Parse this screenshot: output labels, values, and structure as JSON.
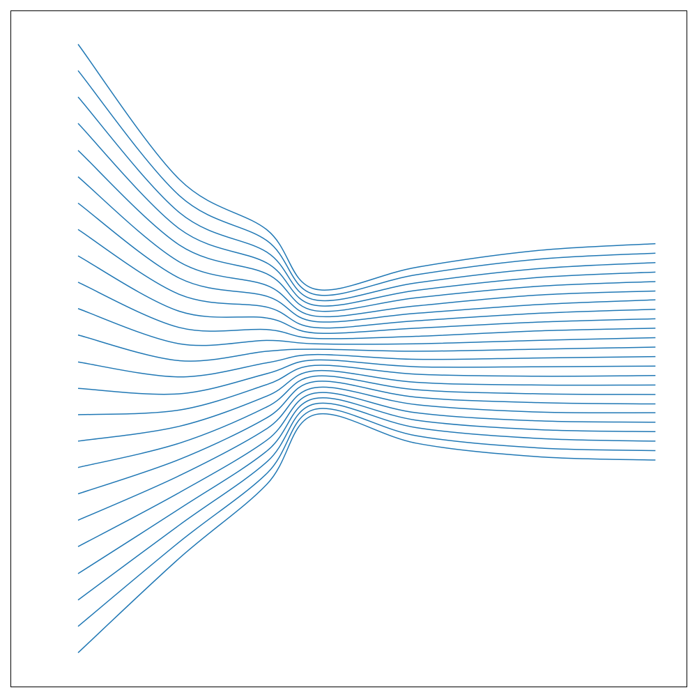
{
  "chart_data": {
    "type": "line",
    "color": "#1f77b4",
    "xlim": [
      0,
      100
    ],
    "ylim": [
      0,
      100
    ],
    "x": [
      10,
      25,
      38,
      45,
      60,
      78,
      95.4
    ],
    "series": [
      {
        "values": [
          95,
          75,
          67.5,
          58.8,
          62,
          64.5,
          65.5
        ]
      },
      {
        "values": [
          91.1,
          72.6,
          65.9,
          58.0,
          60.9,
          63.2,
          64.1
        ]
      },
      {
        "values": [
          87.2,
          70.1,
          64.2,
          57.2,
          59.7,
          61.8,
          62.7
        ]
      },
      {
        "values": [
          83.3,
          67.7,
          62.6,
          56.4,
          58.6,
          60.5,
          61.3
        ]
      },
      {
        "values": [
          79.3,
          65.3,
          61.0,
          55.6,
          57.5,
          59.2,
          59.9
        ]
      },
      {
        "values": [
          75.4,
          62.8,
          59.3,
          54.8,
          56.3,
          57.9,
          58.5
        ]
      },
      {
        "values": [
          71.5,
          60.4,
          57.7,
          54.0,
          55.2,
          56.5,
          57.2
        ]
      },
      {
        "values": [
          67.6,
          58.0,
          56.1,
          53.1,
          54.1,
          55.2,
          55.8
        ]
      },
      {
        "values": [
          63.7,
          55.5,
          54.5,
          52.3,
          53.0,
          53.9,
          54.4
        ]
      },
      {
        "values": [
          59.8,
          53.1,
          52.8,
          51.5,
          51.8,
          52.6,
          53.0
        ]
      },
      {
        "values": [
          55.9,
          50.7,
          51.2,
          50.7,
          50.7,
          51.2,
          51.6
        ]
      },
      {
        "values": [
          52.0,
          48.2,
          49.6,
          49.9,
          49.6,
          49.9,
          50.2
        ]
      },
      {
        "values": [
          48.0,
          45.8,
          47.9,
          49.1,
          48.4,
          48.6,
          48.8
        ]
      },
      {
        "values": [
          44.1,
          43.3,
          46.3,
          48.3,
          47.3,
          47.3,
          47.4
        ]
      },
      {
        "values": [
          40.2,
          40.9,
          44.7,
          47.5,
          46.2,
          45.9,
          46.0
        ]
      },
      {
        "values": [
          36.3,
          38.5,
          43.0,
          46.7,
          45.0,
          44.6,
          44.6
        ]
      },
      {
        "values": [
          32.4,
          36.0,
          41.4,
          45.9,
          43.9,
          43.3,
          43.2
        ]
      },
      {
        "values": [
          28.5,
          33.6,
          39.8,
          45.1,
          42.8,
          42.0,
          41.8
        ]
      },
      {
        "values": [
          24.6,
          31.2,
          38.2,
          44.2,
          41.7,
          40.6,
          40.5
        ]
      },
      {
        "values": [
          20.7,
          28.7,
          36.5,
          43.4,
          40.5,
          39.3,
          39.1
        ]
      },
      {
        "values": [
          16.7,
          26.3,
          34.9,
          42.6,
          39.4,
          38.0,
          37.7
        ]
      },
      {
        "values": [
          12.8,
          23.9,
          33.3,
          41.8,
          38.3,
          36.7,
          36.3
        ]
      },
      {
        "values": [
          8.9,
          21.4,
          31.6,
          41.0,
          37.1,
          35.3,
          34.9
        ]
      },
      {
        "values": [
          5,
          19,
          30,
          40.2,
          36,
          34,
          33.5
        ]
      }
    ]
  }
}
